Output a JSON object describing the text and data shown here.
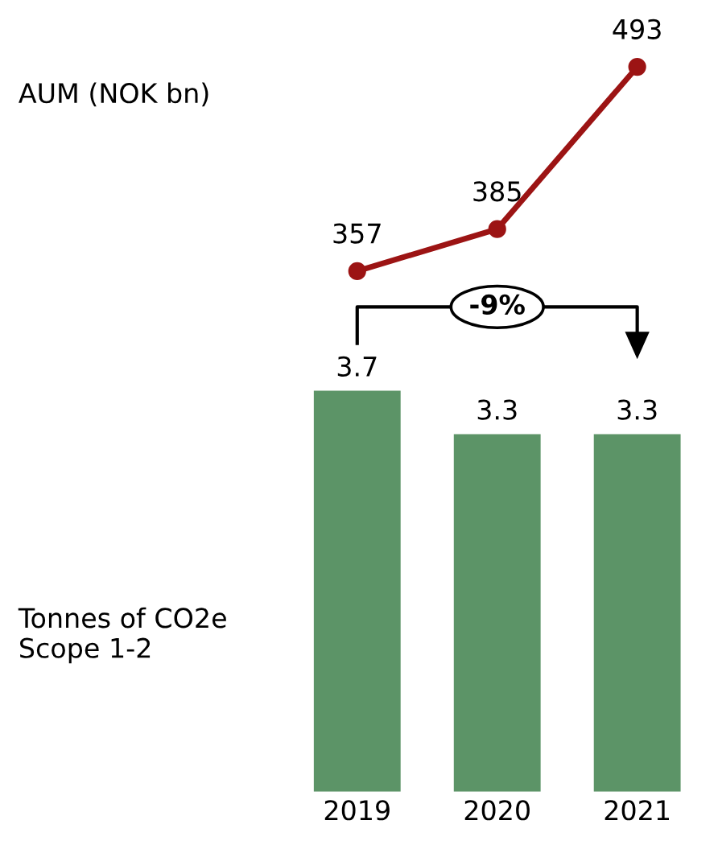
{
  "chart_data": [
    {
      "type": "line",
      "categories": [
        "2019",
        "2020",
        "2021"
      ],
      "ylabel": "AUM (NOK bn)",
      "tick_labels": false,
      "marker": "circle",
      "data_labels": true,
      "series": [
        {
          "color": "#9c1414",
          "values": [
            357,
            385,
            493
          ]
        }
      ]
    },
    {
      "type": "bar",
      "categories": [
        "2019",
        "2020",
        "2021"
      ],
      "ylabel": "Tonnes of CO2e\nScope 1-2",
      "data_labels": true,
      "annotations": [
        "-9%"
      ],
      "series": [
        {
          "color": "#5c9467",
          "values": [
            3.7,
            3.3,
            3.3
          ]
        }
      ]
    }
  ]
}
